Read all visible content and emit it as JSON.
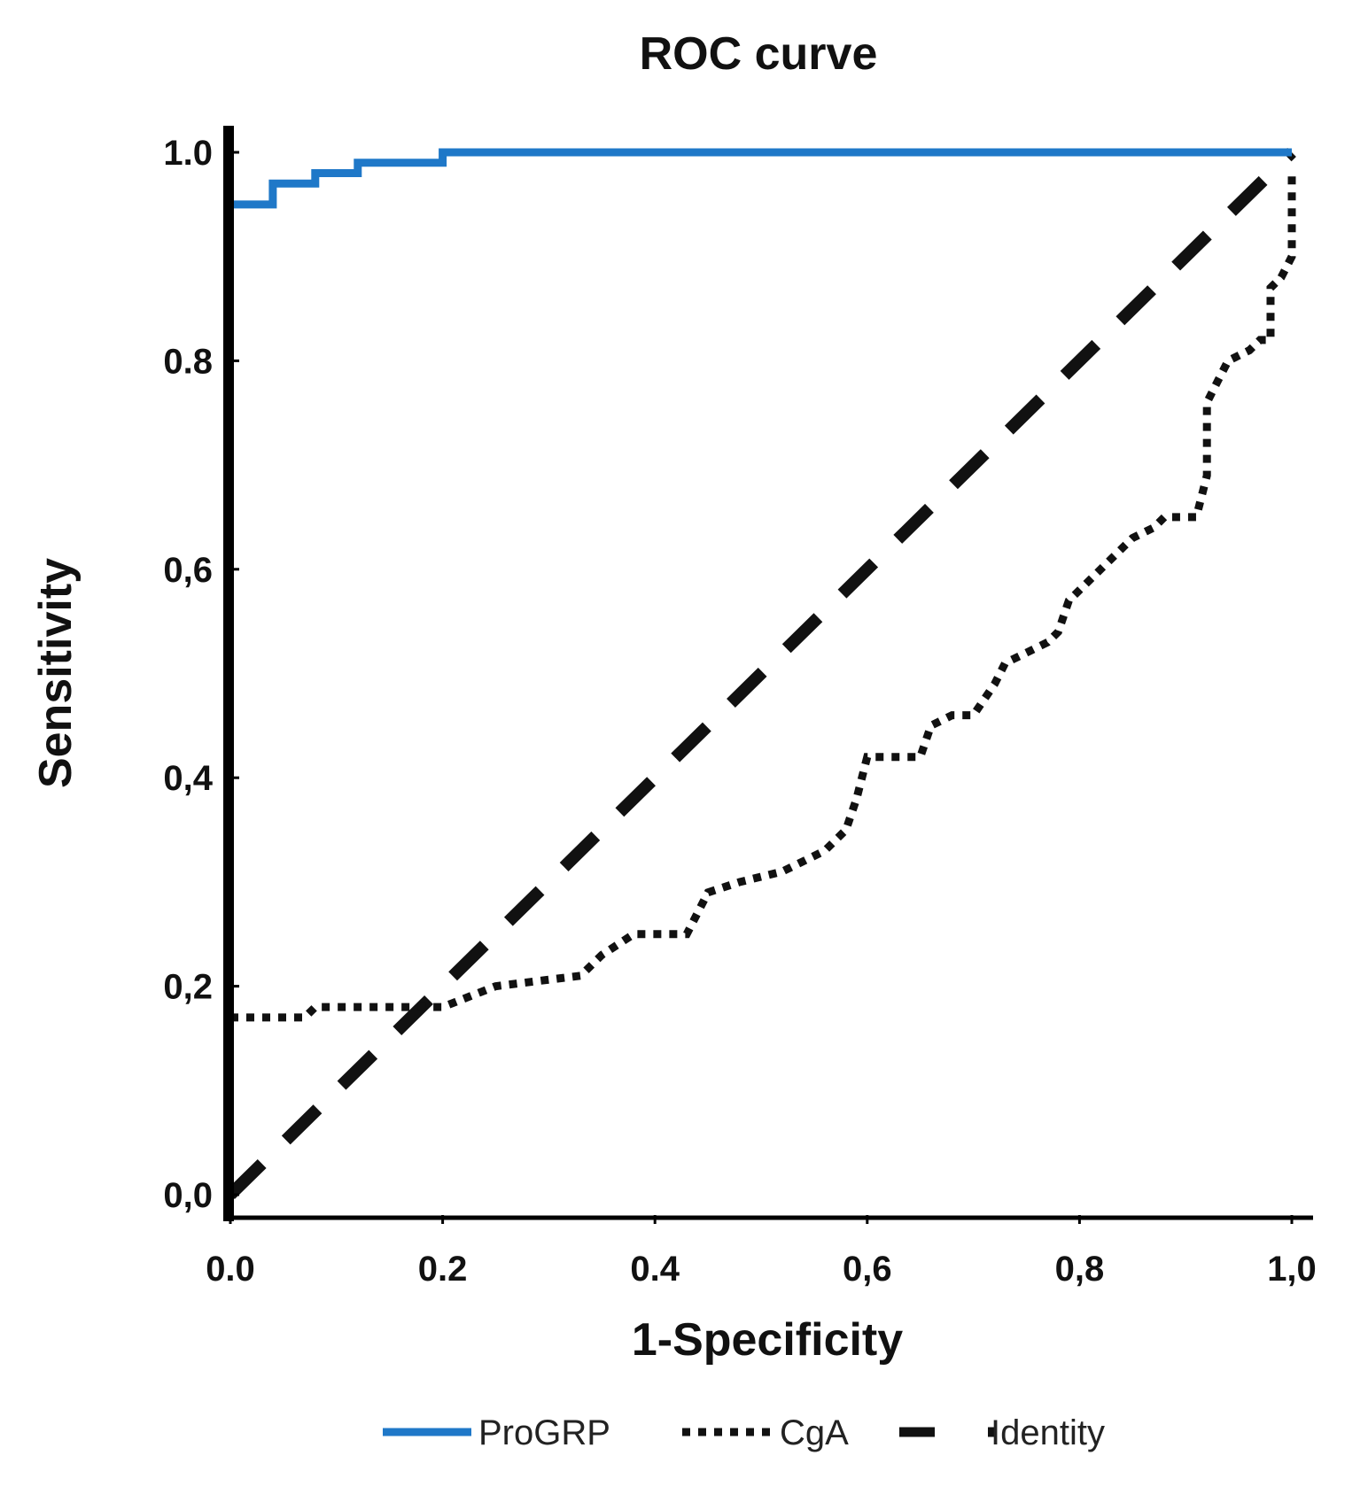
{
  "chart_data": {
    "type": "line",
    "title": "ROC curve",
    "xlabel": "1-Specificity",
    "ylabel": "Sensitivity",
    "xlim": [
      0,
      1
    ],
    "ylim": [
      0,
      1
    ],
    "grid": false,
    "legend_position": "bottom",
    "x_ticks": [
      {
        "value": 0.0,
        "label": "0.0"
      },
      {
        "value": 0.2,
        "label": "0.2"
      },
      {
        "value": 0.4,
        "label": "0.4"
      },
      {
        "value": 0.6,
        "label": "0,6"
      },
      {
        "value": 0.8,
        "label": "0,8"
      },
      {
        "value": 1.0,
        "label": "1,0"
      }
    ],
    "y_ticks": [
      {
        "value": 0.0,
        "label": "0,0"
      },
      {
        "value": 0.2,
        "label": "0,2"
      },
      {
        "value": 0.4,
        "label": "0,4"
      },
      {
        "value": 0.6,
        "label": "0,6"
      },
      {
        "value": 0.8,
        "label": "0.8"
      },
      {
        "value": 1.0,
        "label": "1.0"
      }
    ],
    "series": [
      {
        "name": "ProGRP",
        "color": "#1f78c8",
        "style": "solid",
        "x": [
          0.0,
          0.04,
          0.04,
          0.08,
          0.08,
          0.12,
          0.12,
          0.2,
          0.2,
          1.0
        ],
        "y": [
          0.95,
          0.95,
          0.97,
          0.97,
          0.98,
          0.98,
          0.99,
          0.99,
          1.0,
          1.0
        ]
      },
      {
        "name": "CgA",
        "color": "#111111",
        "style": "dotted",
        "x": [
          0.0,
          0.07,
          0.08,
          0.15,
          0.17,
          0.2,
          0.25,
          0.33,
          0.35,
          0.38,
          0.43,
          0.45,
          0.48,
          0.52,
          0.56,
          0.58,
          0.59,
          0.6,
          0.65,
          0.66,
          0.68,
          0.7,
          0.72,
          0.73,
          0.75,
          0.77,
          0.78,
          0.79,
          0.8,
          0.83,
          0.85,
          0.87,
          0.88,
          0.91,
          0.92,
          0.92,
          0.93,
          0.94,
          0.96,
          0.97,
          0.98,
          0.98,
          0.99,
          1.0,
          1.0
        ],
        "y": [
          0.17,
          0.17,
          0.18,
          0.18,
          0.18,
          0.18,
          0.2,
          0.21,
          0.23,
          0.25,
          0.25,
          0.29,
          0.3,
          0.31,
          0.33,
          0.35,
          0.38,
          0.42,
          0.42,
          0.45,
          0.46,
          0.46,
          0.49,
          0.51,
          0.52,
          0.53,
          0.54,
          0.57,
          0.58,
          0.61,
          0.63,
          0.64,
          0.65,
          0.65,
          0.69,
          0.76,
          0.78,
          0.8,
          0.81,
          0.82,
          0.82,
          0.87,
          0.88,
          0.9,
          0.98
        ]
      },
      {
        "name": "Identity",
        "color": "#111111",
        "style": "dashed",
        "x": [
          0.0,
          1.0
        ],
        "y": [
          0.0,
          1.0
        ]
      }
    ]
  }
}
